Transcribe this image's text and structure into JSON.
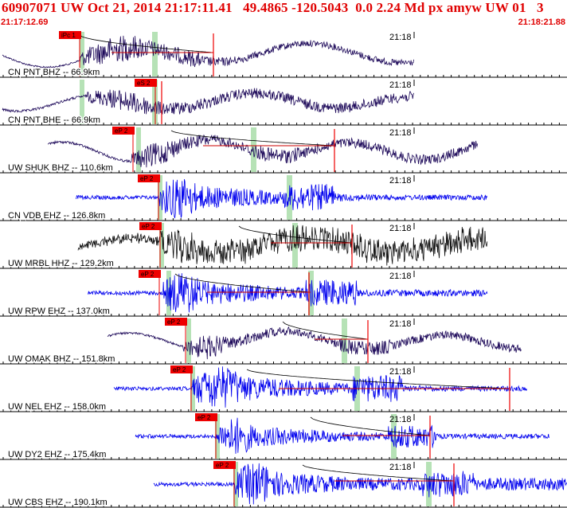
{
  "header": {
    "title": "60907071 UW Oct 21, 2014 21:17:11.41   49.4865 -120.5043  0.0 2.24 Md px amyw UW 01   3",
    "start_time": "21:17:12.69",
    "end_time": "21:18:21.88"
  },
  "minute_mark": "21:18",
  "colors": {
    "header_red": "#e00000",
    "trace_navy": "#1e0a5a",
    "trace_blue": "#0000ee",
    "trace_black": "#111111",
    "pick_red": "#ee0000",
    "window_green": "#b6e2b6",
    "coda_red": "#cc0000"
  },
  "traces": [
    {
      "label": "CN PNT BHZ -- 66.9km",
      "pick": "iPc 1",
      "color": "navy"
    },
    {
      "label": "CN PNT BHE -- 66.9km",
      "pick": "eS 2",
      "color": "navy"
    },
    {
      "label": "UW SHUK BHZ -- 110.6km",
      "pick": "eP 2",
      "color": "navy"
    },
    {
      "label": "CN VDB EHZ -- 126.8km",
      "pick": "eP 2",
      "color": "blue"
    },
    {
      "label": "UW MRBL HHZ -- 129.2km",
      "pick": "eP 2",
      "color": "black"
    },
    {
      "label": "UW RPW EHZ -- 137.0km",
      "pick": "eP 2",
      "color": "blue"
    },
    {
      "label": "UW OMAK BHZ -- 151.8km",
      "pick": "eP 2",
      "color": "navy"
    },
    {
      "label": "UW NEL EHZ -- 158.0km",
      "pick": "eP 2",
      "color": "blue"
    },
    {
      "label": "UW DY2 EHZ -- 175.4km",
      "pick": "eP 2",
      "color": "blue"
    },
    {
      "label": "UW CBS EHZ -- 190.1km",
      "pick": "eP 2",
      "color": "blue"
    }
  ]
}
